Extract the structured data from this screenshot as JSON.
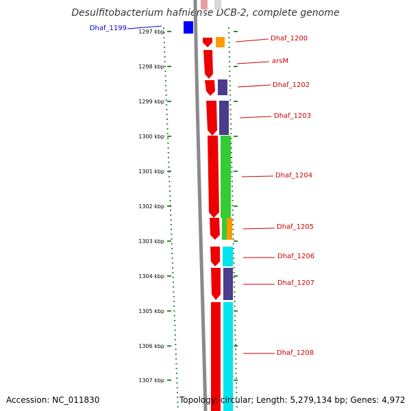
{
  "title": "Desulfitobacterium hafniense DCB-2, complete genome",
  "accession": "Accession: NC_011830",
  "topology": "Topology: circular; Length: 5,279,134 bp; Genes: 4,972",
  "colors": {
    "kbp_tick": "#2e8b2e",
    "label_red": "#cc0000",
    "label_blue": "#0000cc",
    "backbone": "#888888",
    "gene_red": "#ee0000",
    "gene_orange": "#ff9900",
    "gene_purple": "#4b3c8c",
    "gene_green": "#33cc33",
    "gene_cyan": "#00e5ee",
    "gene_blue": "#0000ff"
  },
  "scale": {
    "unit": "kbp",
    "ticks": [
      "1297 kbp",
      "1298 kbp",
      "1299 kbp",
      "1300 kbp",
      "1301 kbp",
      "1302 kbp",
      "1303 kbp",
      "1304 kbp",
      "1305 kbp",
      "1306 kbp",
      "1307 kbp"
    ]
  },
  "genes": [
    {
      "name": "Dhaf_1199",
      "color": "blue"
    },
    {
      "name": "Dhaf_1200",
      "color": "red"
    },
    {
      "name": "arsM",
      "color": "red"
    },
    {
      "name": "Dhaf_1202",
      "color": "red"
    },
    {
      "name": "Dhaf_1203",
      "color": "red"
    },
    {
      "name": "Dhaf_1204",
      "color": "red"
    },
    {
      "name": "Dhaf_1205",
      "color": "red"
    },
    {
      "name": "Dhaf_1206",
      "color": "red"
    },
    {
      "name": "Dhaf_1207",
      "color": "red"
    },
    {
      "name": "Dhaf_1208",
      "color": "red"
    }
  ]
}
